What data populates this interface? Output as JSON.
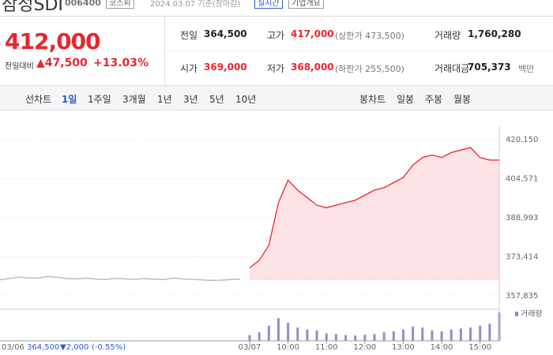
{
  "header": {
    "name": "삼성SDI",
    "code": "006400",
    "market": "코스피",
    "date": "2024.03.07 기준(장마감)",
    "realtime": "실시간",
    "overview": "기업개요"
  },
  "quote": {
    "price": "412,000",
    "change_label": "전일대비",
    "change": "▲47,500",
    "rate": "+13.03%"
  },
  "table": {
    "rows": [
      [
        [
          "전일",
          "364,500",
          null
        ],
        [
          "고가",
          "417,000",
          "(상한가 473,500)"
        ],
        [
          "거래량",
          "1,760,280",
          null
        ]
      ],
      [
        [
          "시가",
          "369,000",
          null
        ],
        [
          "저가",
          "368,000",
          "(하한가 255,500)"
        ],
        [
          "거래대금",
          "705,373",
          "백만"
        ]
      ]
    ]
  },
  "tabs": {
    "line_label": "선차트",
    "line": [
      "1일",
      "1주일",
      "3개월",
      "1년",
      "3년",
      "5년",
      "10년"
    ],
    "candle_label": "봉차트",
    "candle": [
      "일봉",
      "주봉",
      "월봉"
    ]
  },
  "footer": {
    "date": "03/06",
    "price": "364,500",
    "change": "▼2,000",
    "rate": "(-0.55%)"
  },
  "chart_data": {
    "type": "line",
    "categories": [
      null,
      null,
      null,
      null,
      null,
      null,
      null,
      null,
      null,
      null,
      null,
      null,
      null,
      null,
      null,
      null,
      null,
      null,
      null,
      null,
      null,
      null,
      null,
      null,
      null,
      null,
      "03/07",
      null,
      null,
      null,
      "10:00",
      null,
      null,
      null,
      "11:00",
      null,
      null,
      null,
      "12:00",
      null,
      null,
      null,
      "13:00",
      null,
      null,
      null,
      "14:00",
      null,
      null,
      null,
      "15:00",
      null,
      null
    ],
    "series": [
      {
        "color": "#b4b4b4",
        "values": [
          364200,
          364800,
          365300,
          365000,
          364900,
          365600,
          365200,
          364700,
          364600,
          364900,
          364500,
          364300,
          364800,
          364600,
          364400,
          364700,
          364500,
          364300,
          364900,
          364600,
          364400,
          364200,
          364000,
          364100,
          364300,
          364500,
          null,
          null,
          null,
          null,
          null,
          null,
          null,
          null,
          null,
          null,
          null,
          null,
          null,
          null,
          null,
          null,
          null,
          null,
          null,
          null,
          null,
          null,
          null,
          null,
          null,
          null,
          null
        ]
      },
      {
        "color": "#e8262e",
        "fill": "#fde3e5",
        "values": [
          null,
          null,
          null,
          null,
          null,
          null,
          null,
          null,
          null,
          null,
          null,
          null,
          null,
          null,
          null,
          null,
          null,
          null,
          null,
          null,
          null,
          null,
          null,
          null,
          null,
          null,
          369000,
          372000,
          378000,
          395000,
          404000,
          400000,
          397000,
          394000,
          393000,
          394000,
          395000,
          396000,
          398000,
          400000,
          401000,
          403000,
          405000,
          410000,
          413000,
          414000,
          413000,
          415000,
          416000,
          417000,
          413000,
          412000,
          412000
        ]
      }
    ],
    "baseline": 364500,
    "ylim": [
      357835,
      420150
    ],
    "yticks": [
      {
        "value": 357835,
        "label": "357,835"
      },
      {
        "value": 373414,
        "label": "373,414"
      },
      {
        "value": 388993,
        "label": "388,993"
      },
      {
        "value": 404571,
        "label": "404,571"
      },
      {
        "value": 420150,
        "label": "420,150"
      }
    ],
    "grid": true,
    "volume": {
      "name": "거래량",
      "color": "#9c88cc",
      "values": [
        3000,
        2000,
        2500,
        1800,
        1500,
        2200,
        1600,
        1400,
        1200,
        1300,
        1100,
        1500,
        1200,
        1000,
        1300,
        1100,
        1000,
        1200,
        1400,
        1100,
        1000,
        900,
        1200,
        1500,
        1800,
        2500,
        30000,
        45000,
        80000,
        120000,
        95000,
        70000,
        60000,
        55000,
        40000,
        35000,
        30000,
        28000,
        32000,
        36000,
        45000,
        50000,
        60000,
        75000,
        70000,
        55000,
        50000,
        60000,
        65000,
        70000,
        80000,
        90000,
        150000
      ]
    }
  }
}
